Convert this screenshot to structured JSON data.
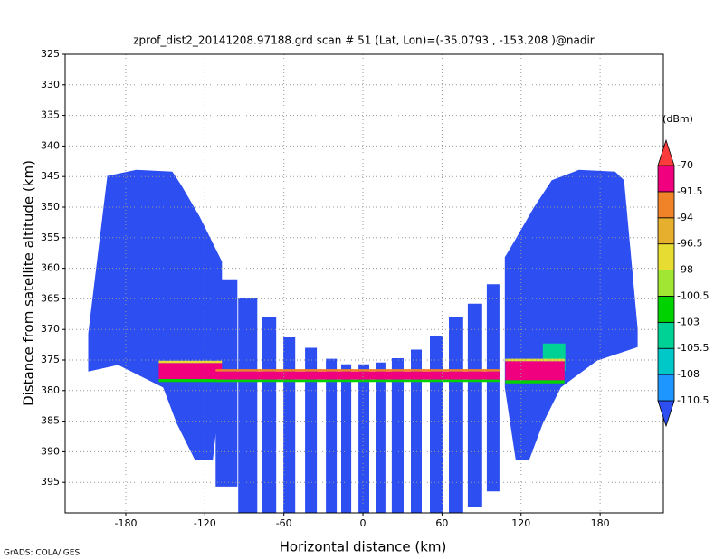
{
  "chart_data": {
    "type": "field",
    "title": "zprof_dist2_20141208.97188.grd  scan # 51  (Lat, Lon)=(-35.0793 , -153.208 )@nadir",
    "xlabel": "Horizontal distance (km)",
    "ylabel": "Distance from satellite altitude (km)",
    "footer": "GrADS: COLA/IGES",
    "xlim": [
      -226,
      228
    ],
    "ylim": [
      325,
      400
    ],
    "y_inverted": true,
    "xticks": [
      -180,
      -120,
      -60,
      0,
      60,
      120,
      180
    ],
    "yticks": [
      325,
      330,
      335,
      340,
      345,
      350,
      355,
      360,
      365,
      370,
      375,
      380,
      385,
      390,
      395
    ],
    "grid": true,
    "colorbar": {
      "unit": "(dBm)",
      "levels": [
        -110.5,
        -108,
        -105.5,
        -103,
        -100.5,
        -98,
        -96.5,
        -94,
        -91.5,
        -70
      ],
      "colors": [
        "#2d4ef0",
        "#1e96ff",
        "#00c8c8",
        "#00d296",
        "#00d200",
        "#a0e632",
        "#e6dc32",
        "#e6af2d",
        "#f08228",
        "#f0007f",
        "#fa3c3c"
      ]
    },
    "regions": [
      {
        "color": "#2d4ef0",
        "x": [
          -194,
          -172,
          -144.7,
          -137.9,
          -124.1,
          -113.9,
          -107,
          -107,
          -113.9,
          -127.6,
          -141.3,
          -151.6,
          -185.9,
          -208.5,
          -208.5
        ],
        "y": [
          344.9,
          343.9,
          344.2,
          346.4,
          351.5,
          355.9,
          358.9,
          378,
          391.3,
          391.3,
          385.4,
          379.5,
          375.8,
          376.9,
          370.7
        ]
      },
      {
        "color": "#2d4ef0",
        "x": [
          198.2,
          191.4,
          163.9,
          143.3,
          129.6,
          115.9,
          107.7,
          107.7,
          115.9,
          126.2,
          136.5,
          150.2,
          177.6,
          208.5,
          208.5
        ],
        "y": [
          345.6,
          344.2,
          343.9,
          345.6,
          350.1,
          355.2,
          358.2,
          379.5,
          391.3,
          391.3,
          385.4,
          379.5,
          375.1,
          372.9,
          369.9
        ]
      },
      {
        "color": "#2d4ef0",
        "x": [
          -111.8,
          -95.3,
          -95.3,
          -111.8
        ],
        "y": [
          361.8,
          361.8,
          395.7,
          395.7
        ]
      },
      {
        "color": "#2d4ef0",
        "x": [
          -94.7,
          -80.2,
          -80.2,
          -94.7
        ],
        "y": [
          364.8,
          364.8,
          400,
          400
        ]
      },
      {
        "color": "#2d4ef0",
        "x": [
          -76.8,
          -65.8,
          -65.8,
          -76.8
        ],
        "y": [
          368,
          368,
          400,
          400
        ]
      },
      {
        "color": "#2d4ef0",
        "x": [
          -60.4,
          -51.4,
          -51.4,
          -60.4
        ],
        "y": [
          371.3,
          371.3,
          400,
          400
        ]
      },
      {
        "color": "#2d4ef0",
        "x": [
          -43.9,
          -35,
          -35,
          -43.9
        ],
        "y": [
          373,
          373,
          400,
          400
        ]
      },
      {
        "color": "#2d4ef0",
        "x": [
          -28.1,
          -19.9,
          -19.9,
          -28.1
        ],
        "y": [
          374.8,
          374.8,
          400,
          400
        ]
      },
      {
        "color": "#2d4ef0",
        "x": [
          -16.5,
          -8.9,
          -8.9,
          -16.5
        ],
        "y": [
          375.7,
          375.7,
          400,
          400
        ]
      },
      {
        "color": "#2d4ef0",
        "x": [
          -3.4,
          4.8,
          4.8,
          -3.4
        ],
        "y": [
          375.7,
          375.7,
          400,
          400
        ]
      },
      {
        "color": "#2d4ef0",
        "x": [
          9.6,
          17.1,
          17.1,
          9.6
        ],
        "y": [
          375.4,
          375.4,
          400,
          400
        ]
      },
      {
        "color": "#2d4ef0",
        "x": [
          21.9,
          30.9,
          30.9,
          21.9
        ],
        "y": [
          374.7,
          374.7,
          400,
          400
        ]
      },
      {
        "color": "#2d4ef0",
        "x": [
          36.4,
          44.6,
          44.6,
          36.4
        ],
        "y": [
          373.3,
          373.3,
          400,
          400
        ]
      },
      {
        "color": "#2d4ef0",
        "x": [
          50.8,
          60.4,
          60.4,
          50.8
        ],
        "y": [
          371.1,
          371.1,
          400,
          400
        ]
      },
      {
        "color": "#2d4ef0",
        "x": [
          65.2,
          76.1,
          76.1,
          65.2
        ],
        "y": [
          368,
          368,
          400,
          400
        ]
      },
      {
        "color": "#2d4ef0",
        "x": [
          79.6,
          90.5,
          90.5,
          79.6
        ],
        "y": [
          365.8,
          365.8,
          399,
          399
        ]
      },
      {
        "color": "#2d4ef0",
        "x": [
          94,
          103.6,
          103.6,
          94
        ],
        "y": [
          362.6,
          362.6,
          396.5,
          396.5
        ]
      },
      {
        "color": "#00d296",
        "x": [
          136.5,
          153.6,
          153.6,
          136.5
        ],
        "y": [
          372.3,
          372.3,
          376.8,
          376.8
        ]
      },
      {
        "color": "#e6dc32",
        "x": [
          -155,
          -107,
          -107,
          -155
        ],
        "y": [
          375.1,
          375.1,
          375.5,
          375.5
        ]
      },
      {
        "color": "#00d200",
        "x": [
          -155,
          -107,
          -107,
          -155
        ],
        "y": [
          378.1,
          378.1,
          378.6,
          378.6
        ]
      },
      {
        "color": "#e6dc32",
        "x": [
          108,
          153,
          153,
          108
        ],
        "y": [
          374.8,
          374.8,
          375.2,
          375.2
        ]
      },
      {
        "color": "#00d200",
        "x": [
          108,
          153,
          153,
          108
        ],
        "y": [
          378.3,
          378.3,
          378.8,
          378.8
        ]
      },
      {
        "color": "#f0007f",
        "x": [
          -155,
          -107,
          -107,
          -155
        ],
        "y": [
          375.5,
          375.5,
          378.1,
          378.1
        ]
      },
      {
        "color": "#f0007f",
        "x": [
          108,
          153,
          153,
          108
        ],
        "y": [
          375.2,
          375.2,
          378.3,
          378.3
        ]
      },
      {
        "color": "#f08228",
        "x": [
          -111.8,
          103.6,
          103.6,
          -111.8
        ],
        "y": [
          376.5,
          376.5,
          376.9,
          376.9
        ]
      },
      {
        "color": "#f0007f",
        "x": [
          -111.8,
          103.6,
          103.6,
          -111.8
        ],
        "y": [
          376.9,
          376.9,
          378.2,
          378.2
        ]
      },
      {
        "color": "#00d200",
        "x": [
          -111.8,
          103.6,
          103.6,
          -111.8
        ],
        "y": [
          378.2,
          378.2,
          378.6,
          378.6
        ]
      }
    ]
  }
}
